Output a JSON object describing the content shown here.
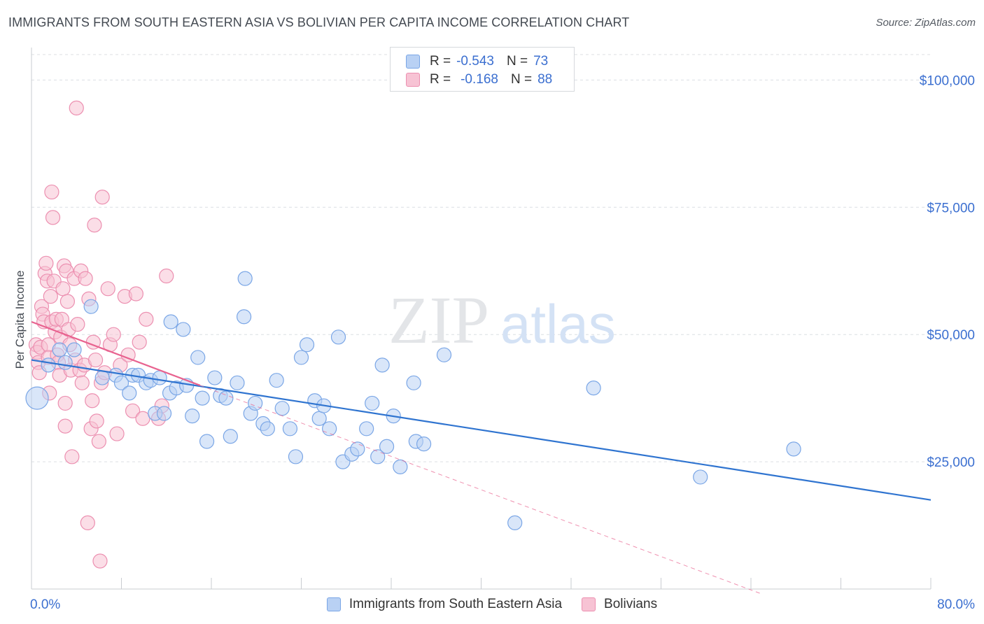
{
  "header": {
    "title": "IMMIGRANTS FROM SOUTH EASTERN ASIA VS BOLIVIAN PER CAPITA INCOME CORRELATION CHART",
    "source": "Source: ZipAtlas.com"
  },
  "watermark": {
    "zip": "ZIP",
    "atlas": "atlas"
  },
  "colors": {
    "blue_fill": "#b9d1f4",
    "blue_stroke": "#7aa6e6",
    "blue_line": "#2f74d0",
    "pink_fill": "#f7c3d4",
    "pink_stroke": "#ec8fb0",
    "pink_line": "#e8628f",
    "axis_label": "#3b6fd0",
    "grid": "#dcdfe3"
  },
  "stats_legend": {
    "rows": [
      {
        "r_label": "R =",
        "r_value": "-0.543",
        "n_label": "N =",
        "n_value": "73"
      },
      {
        "r_label": "R =",
        "r_value": "-0.168",
        "n_label": "N =",
        "n_value": "88"
      }
    ]
  },
  "chart_data": {
    "type": "scatter",
    "title": "IMMIGRANTS FROM SOUTH EASTERN ASIA VS BOLIVIAN PER CAPITA INCOME CORRELATION CHART",
    "ylabel": "Per Capita Income",
    "xlim": [
      0,
      80
    ],
    "ylim": [
      0,
      105000
    ],
    "x_tick_labels": [
      "0.0%",
      "80.0%"
    ],
    "y_ticks": [
      {
        "value": 25000,
        "label": "$25,000"
      },
      {
        "value": 50000,
        "label": "$50,000"
      },
      {
        "value": 75000,
        "label": "$75,000"
      },
      {
        "value": 100000,
        "label": "$100,000"
      }
    ],
    "grid": true,
    "legend_position": "bottom",
    "series": [
      {
        "name": "Immigrants from South Eastern Asia",
        "color": "#b9d1f4",
        "trend": {
          "x": [
            0,
            80
          ],
          "y": [
            45000,
            17500
          ],
          "style": "solid"
        },
        "points": [
          [
            0.5,
            37500
          ],
          [
            1.5,
            44000
          ],
          [
            2.5,
            47000
          ],
          [
            3,
            44500
          ],
          [
            3.8,
            47000
          ],
          [
            5.3,
            55500
          ],
          [
            6.3,
            41500
          ],
          [
            7.5,
            42000
          ],
          [
            8.0,
            40500
          ],
          [
            8.7,
            38500
          ],
          [
            9.0,
            42000
          ],
          [
            9.5,
            42000
          ],
          [
            10.2,
            40500
          ],
          [
            10.6,
            41000
          ],
          [
            11.0,
            34500
          ],
          [
            11.4,
            41500
          ],
          [
            11.8,
            34500
          ],
          [
            12.3,
            38500
          ],
          [
            12.4,
            52500
          ],
          [
            12.9,
            39500
          ],
          [
            13.5,
            51000
          ],
          [
            13.8,
            40000
          ],
          [
            14.3,
            34000
          ],
          [
            14.8,
            45500
          ],
          [
            15.2,
            37500
          ],
          [
            15.6,
            29000
          ],
          [
            16.3,
            41500
          ],
          [
            16.8,
            38000
          ],
          [
            17.3,
            37500
          ],
          [
            17.7,
            30000
          ],
          [
            18.3,
            40500
          ],
          [
            18.9,
            53500
          ],
          [
            19.0,
            61000
          ],
          [
            19.5,
            34500
          ],
          [
            19.9,
            36500
          ],
          [
            20.6,
            32500
          ],
          [
            21.0,
            31500
          ],
          [
            21.8,
            41000
          ],
          [
            22.3,
            35500
          ],
          [
            23.0,
            31500
          ],
          [
            23.5,
            26000
          ],
          [
            24.0,
            45500
          ],
          [
            24.5,
            48000
          ],
          [
            25.2,
            37000
          ],
          [
            25.6,
            33500
          ],
          [
            26.0,
            36000
          ],
          [
            26.5,
            31500
          ],
          [
            27.3,
            49500
          ],
          [
            27.7,
            25000
          ],
          [
            28.5,
            26500
          ],
          [
            29.0,
            27500
          ],
          [
            29.8,
            31500
          ],
          [
            30.3,
            36500
          ],
          [
            30.8,
            26000
          ],
          [
            31.2,
            44000
          ],
          [
            31.6,
            28000
          ],
          [
            32.2,
            34000
          ],
          [
            32.8,
            24000
          ],
          [
            34.0,
            40500
          ],
          [
            34.2,
            29000
          ],
          [
            34.9,
            28500
          ],
          [
            36.7,
            46000
          ],
          [
            43.0,
            13000
          ],
          [
            50.0,
            39500
          ],
          [
            59.5,
            22000
          ],
          [
            67.8,
            27500
          ]
        ]
      },
      {
        "name": "Bolivians",
        "color": "#f7c3d4",
        "trend": {
          "x": [
            0,
            15
          ],
          "y": [
            52500,
            40000
          ],
          "style": "solid",
          "extension": {
            "x": [
              15,
              65
            ],
            "y": [
              40000,
              -1000
            ],
            "style": "dashed"
          }
        },
        "points": [
          [
            0.4,
            48000
          ],
          [
            0.5,
            46500
          ],
          [
            0.6,
            44500
          ],
          [
            0.7,
            42500
          ],
          [
            0.8,
            47500
          ],
          [
            0.9,
            55500
          ],
          [
            1.0,
            54000
          ],
          [
            1.1,
            52500
          ],
          [
            1.2,
            62000
          ],
          [
            1.3,
            64000
          ],
          [
            1.4,
            60500
          ],
          [
            1.5,
            48000
          ],
          [
            1.5,
            45500
          ],
          [
            1.6,
            38500
          ],
          [
            1.7,
            57500
          ],
          [
            1.8,
            52500
          ],
          [
            1.8,
            78000
          ],
          [
            1.9,
            73000
          ],
          [
            2.0,
            60500
          ],
          [
            2.1,
            50500
          ],
          [
            2.2,
            53000
          ],
          [
            2.3,
            46000
          ],
          [
            2.4,
            44500
          ],
          [
            2.5,
            42000
          ],
          [
            2.6,
            49500
          ],
          [
            2.7,
            53000
          ],
          [
            2.8,
            59000
          ],
          [
            2.9,
            63500
          ],
          [
            3.0,
            36500
          ],
          [
            3.0,
            32000
          ],
          [
            3.1,
            62500
          ],
          [
            3.2,
            56500
          ],
          [
            3.3,
            51000
          ],
          [
            3.4,
            48000
          ],
          [
            3.5,
            43000
          ],
          [
            3.6,
            26000
          ],
          [
            3.8,
            61000
          ],
          [
            3.9,
            45000
          ],
          [
            4.0,
            94500
          ],
          [
            4.1,
            52000
          ],
          [
            4.3,
            43000
          ],
          [
            4.4,
            62500
          ],
          [
            4.5,
            40500
          ],
          [
            4.7,
            44000
          ],
          [
            4.8,
            61000
          ],
          [
            5.0,
            13000
          ],
          [
            5.1,
            57000
          ],
          [
            5.3,
            31500
          ],
          [
            5.4,
            37000
          ],
          [
            5.5,
            48500
          ],
          [
            5.6,
            71500
          ],
          [
            5.7,
            45000
          ],
          [
            5.8,
            33000
          ],
          [
            6.0,
            29000
          ],
          [
            6.1,
            5500
          ],
          [
            6.2,
            40500
          ],
          [
            6.3,
            77000
          ],
          [
            6.5,
            42500
          ],
          [
            6.8,
            59000
          ],
          [
            7.0,
            48000
          ],
          [
            7.3,
            50000
          ],
          [
            7.6,
            30500
          ],
          [
            7.9,
            44000
          ],
          [
            8.3,
            57500
          ],
          [
            8.6,
            46000
          ],
          [
            9.0,
            35000
          ],
          [
            9.3,
            58000
          ],
          [
            9.6,
            48500
          ],
          [
            9.9,
            33500
          ],
          [
            10.2,
            53000
          ],
          [
            11.3,
            33500
          ],
          [
            11.6,
            36000
          ],
          [
            12.0,
            61500
          ]
        ]
      }
    ]
  },
  "bottom_legend": {
    "items": [
      {
        "label": "Immigrants from South Eastern Asia"
      },
      {
        "label": "Bolivians"
      }
    ]
  }
}
